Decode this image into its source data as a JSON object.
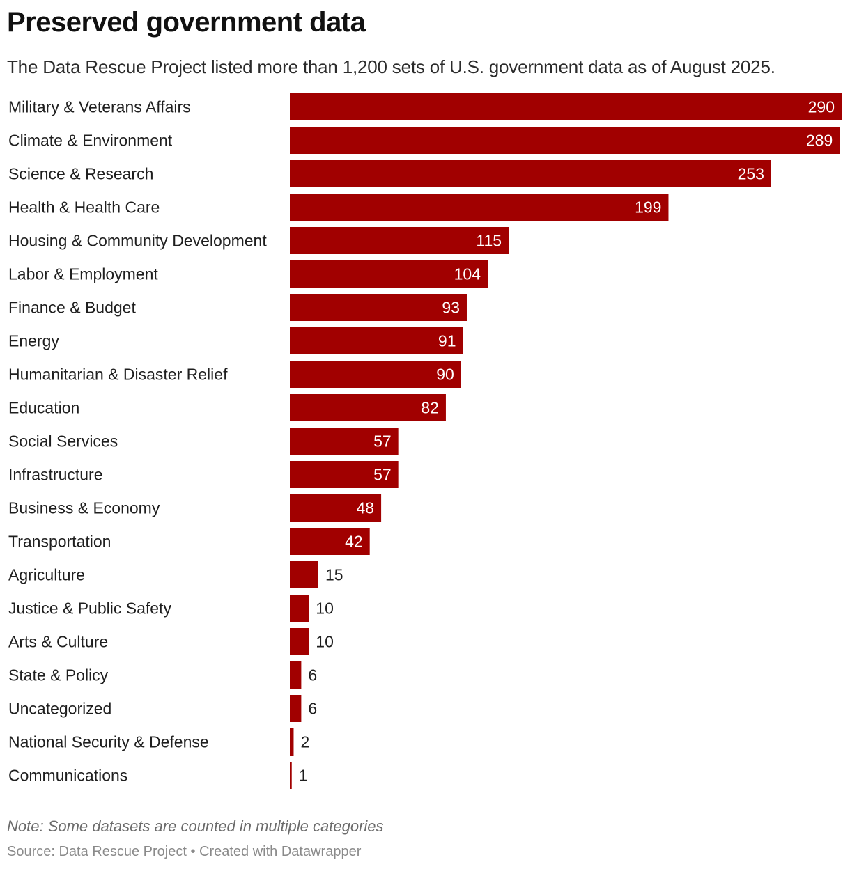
{
  "header": {
    "title": "Preserved government data",
    "subtitle": "The Data Rescue Project listed more than 1,200 sets of U.S. government data as of August 2025."
  },
  "footer": {
    "note": "Note: Some datasets are counted in multiple categories",
    "source": "Source: Data Rescue Project • Created with Datawrapper"
  },
  "colors": {
    "bar": "#a10000"
  },
  "chart_data": {
    "type": "bar",
    "orientation": "horizontal",
    "title": "Preserved government data",
    "subtitle": "The Data Rescue Project listed more than 1,200 sets of U.S. government data as of August 2025.",
    "xlabel": "",
    "ylabel": "",
    "xlim": [
      0,
      290
    ],
    "grid": false,
    "legend": "none",
    "categories": [
      "Military & Veterans Affairs",
      "Climate & Environment",
      "Science & Research",
      "Health & Health Care",
      "Housing & Community Development",
      "Labor & Employment",
      "Finance & Budget",
      "Energy",
      "Humanitarian & Disaster Relief",
      "Education",
      "Social Services",
      "Infrastructure",
      "Business & Economy",
      "Transportation",
      "Agriculture",
      "Justice & Public Safety",
      "Arts & Culture",
      "State & Policy",
      "Uncategorized",
      "National Security & Defense",
      "Communications"
    ],
    "values": [
      290,
      289,
      253,
      199,
      115,
      104,
      93,
      91,
      90,
      82,
      57,
      57,
      48,
      42,
      15,
      10,
      10,
      6,
      6,
      2,
      1
    ]
  }
}
